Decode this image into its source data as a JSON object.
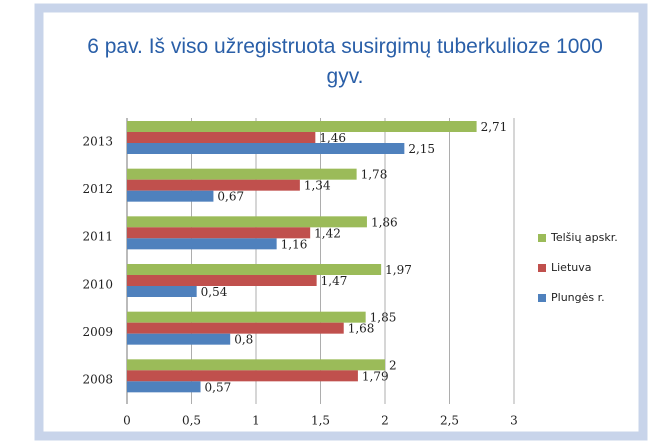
{
  "chart_data": {
    "type": "barh",
    "title": "6 pav. Iš viso užregistruota susirgimų tuberkulioze 1000 gyv.",
    "categories": [
      "2008",
      "2009",
      "2010",
      "2011",
      "2012",
      "2013"
    ],
    "series": [
      {
        "name": "Telšių apskr.",
        "color": "#9bbb59",
        "values": [
          2,
          1.85,
          1.97,
          1.86,
          1.78,
          2.71
        ],
        "value_labels": [
          "2",
          "1,85",
          "1,97",
          "1,86",
          "1,78",
          "2,71"
        ]
      },
      {
        "name": "Lietuva",
        "color": "#c0504d",
        "values": [
          1.79,
          1.68,
          1.47,
          1.42,
          1.34,
          1.46
        ],
        "value_labels": [
          "1,79",
          "1,68",
          "1,47",
          "1,42",
          "1,34",
          "1,46"
        ]
      },
      {
        "name": "Plungės r.",
        "color": "#4f81bd",
        "values": [
          0.57,
          0.8,
          0.54,
          1.16,
          0.67,
          2.15
        ],
        "value_labels": [
          "0,57",
          "0,8",
          "0,54",
          "1,16",
          "0,67",
          "2,15"
        ]
      }
    ],
    "xlim": [
      0,
      3
    ],
    "xticks": [
      0,
      {
        "value": 0.5,
        "label": "0,5"
      },
      1,
      {
        "value": 1.5,
        "label": "1,5"
      },
      2,
      {
        "value": 2.5,
        "label": "2,5"
      },
      3
    ],
    "grid": true,
    "legend": "right"
  }
}
